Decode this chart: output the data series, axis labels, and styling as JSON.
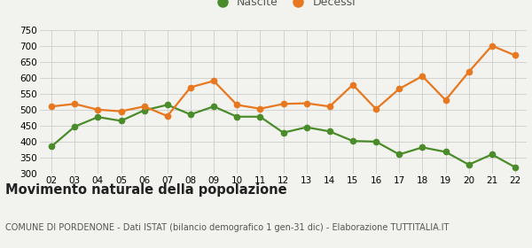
{
  "years": [
    "02",
    "03",
    "04",
    "05",
    "06",
    "07",
    "08",
    "09",
    "10",
    "11",
    "12",
    "13",
    "14",
    "15",
    "16",
    "17",
    "18",
    "19",
    "20",
    "21",
    "22"
  ],
  "nascite": [
    385,
    447,
    477,
    465,
    498,
    515,
    485,
    510,
    478,
    478,
    428,
    445,
    432,
    402,
    400,
    360,
    382,
    368,
    328,
    360,
    320
  ],
  "decessi": [
    510,
    518,
    500,
    495,
    510,
    480,
    570,
    590,
    515,
    503,
    518,
    520,
    510,
    578,
    502,
    565,
    605,
    530,
    618,
    700,
    670
  ],
  "nascite_color": "#4a8c2a",
  "decessi_color": "#e87820",
  "background_color": "#f2f2ee",
  "grid_color": "#cccccc",
  "ylim": [
    300,
    750
  ],
  "yticks": [
    300,
    350,
    400,
    450,
    500,
    550,
    600,
    650,
    700,
    750
  ],
  "title": "Movimento naturale della popolazione",
  "subtitle": "COMUNE DI PORDENONE - Dati ISTAT (bilancio demografico 1 gen-31 dic) - Elaborazione TUTTITALIA.IT",
  "legend_labels": [
    "Nascite",
    "Decessi"
  ],
  "marker_size": 4.5,
  "line_width": 1.6,
  "tick_fontsize": 7.5,
  "title_fontsize": 10.5,
  "subtitle_fontsize": 7.0,
  "legend_fontsize": 9.0
}
